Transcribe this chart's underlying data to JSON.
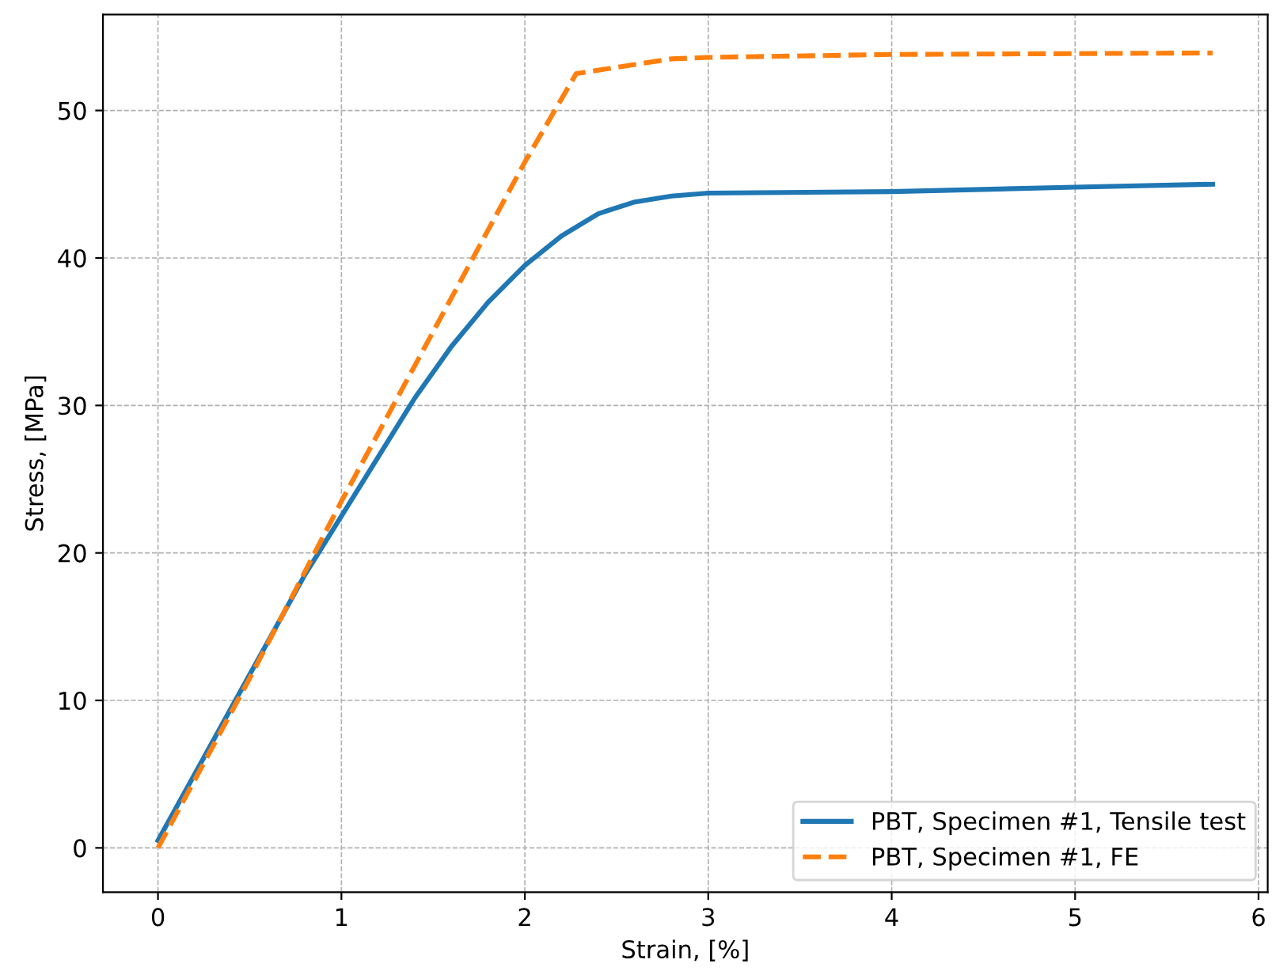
{
  "chart_data": {
    "type": "line",
    "xlabel": "Strain, [%]",
    "ylabel": "Stress, [MPa]",
    "xlim": [
      -0.3,
      6.05
    ],
    "ylim": [
      -3,
      56.5
    ],
    "xticks": [
      0,
      1,
      2,
      3,
      4,
      5,
      6
    ],
    "yticks": [
      0,
      10,
      20,
      30,
      40,
      50
    ],
    "grid": true,
    "legend": "bottom right",
    "series": [
      {
        "name": "PBT, Specimen #1, Tensile test",
        "color": "#1f77b4",
        "line_style": "solid",
        "x": [
          0,
          0.2,
          0.4,
          0.6,
          0.8,
          1.0,
          1.2,
          1.4,
          1.6,
          1.8,
          2.0,
          2.2,
          2.4,
          2.6,
          2.8,
          3.0,
          4.0,
          5.0,
          5.75
        ],
        "values": [
          0.5,
          5,
          9.5,
          14,
          18.5,
          22.5,
          26.5,
          30.5,
          34,
          37,
          39.5,
          41.5,
          43,
          43.8,
          44.2,
          44.4,
          44.5,
          44.8,
          45
        ]
      },
      {
        "name": "PBT, Specimen #1, FE",
        "color": "#ff7f0e",
        "line_style": "dashed",
        "x": [
          0,
          0.5,
          1.0,
          1.5,
          2.0,
          2.28,
          2.8,
          3.0,
          4.0,
          5.75
        ],
        "values": [
          0,
          11.5,
          23.5,
          35,
          46.5,
          52.5,
          53.5,
          53.6,
          53.8,
          53.9
        ]
      }
    ]
  }
}
